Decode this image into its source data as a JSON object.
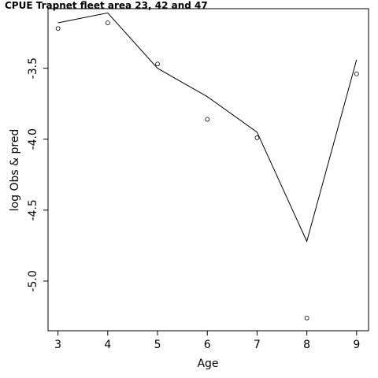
{
  "chart_data": {
    "type": "line",
    "title": "CPUE Trapnet fleet area 23, 42 and 47",
    "xlabel": "Age",
    "ylabel": "log Obs & pred",
    "x": [
      3,
      4,
      5,
      6,
      7,
      8,
      9
    ],
    "series": [
      {
        "kind": "observed-points",
        "values": [
          -3.22,
          -3.18,
          -3.47,
          -3.86,
          -3.99,
          -5.26,
          -3.54
        ]
      },
      {
        "kind": "predicted-line",
        "values": [
          -3.18,
          -3.11,
          -3.5,
          -3.7,
          -3.95,
          -4.72,
          -3.44
        ]
      }
    ],
    "xticks": [
      3,
      4,
      5,
      6,
      7,
      8,
      9
    ],
    "yticks": [
      -3.5,
      -4.0,
      -4.5,
      -5.0
    ],
    "yticklabels": [
      "-3.5",
      "-4.0",
      "-4.5",
      "-5.0"
    ],
    "xlim": [
      2.8,
      9.24
    ],
    "ylim": [
      -5.35,
      -3.08
    ],
    "grid": false,
    "legend": "none"
  }
}
